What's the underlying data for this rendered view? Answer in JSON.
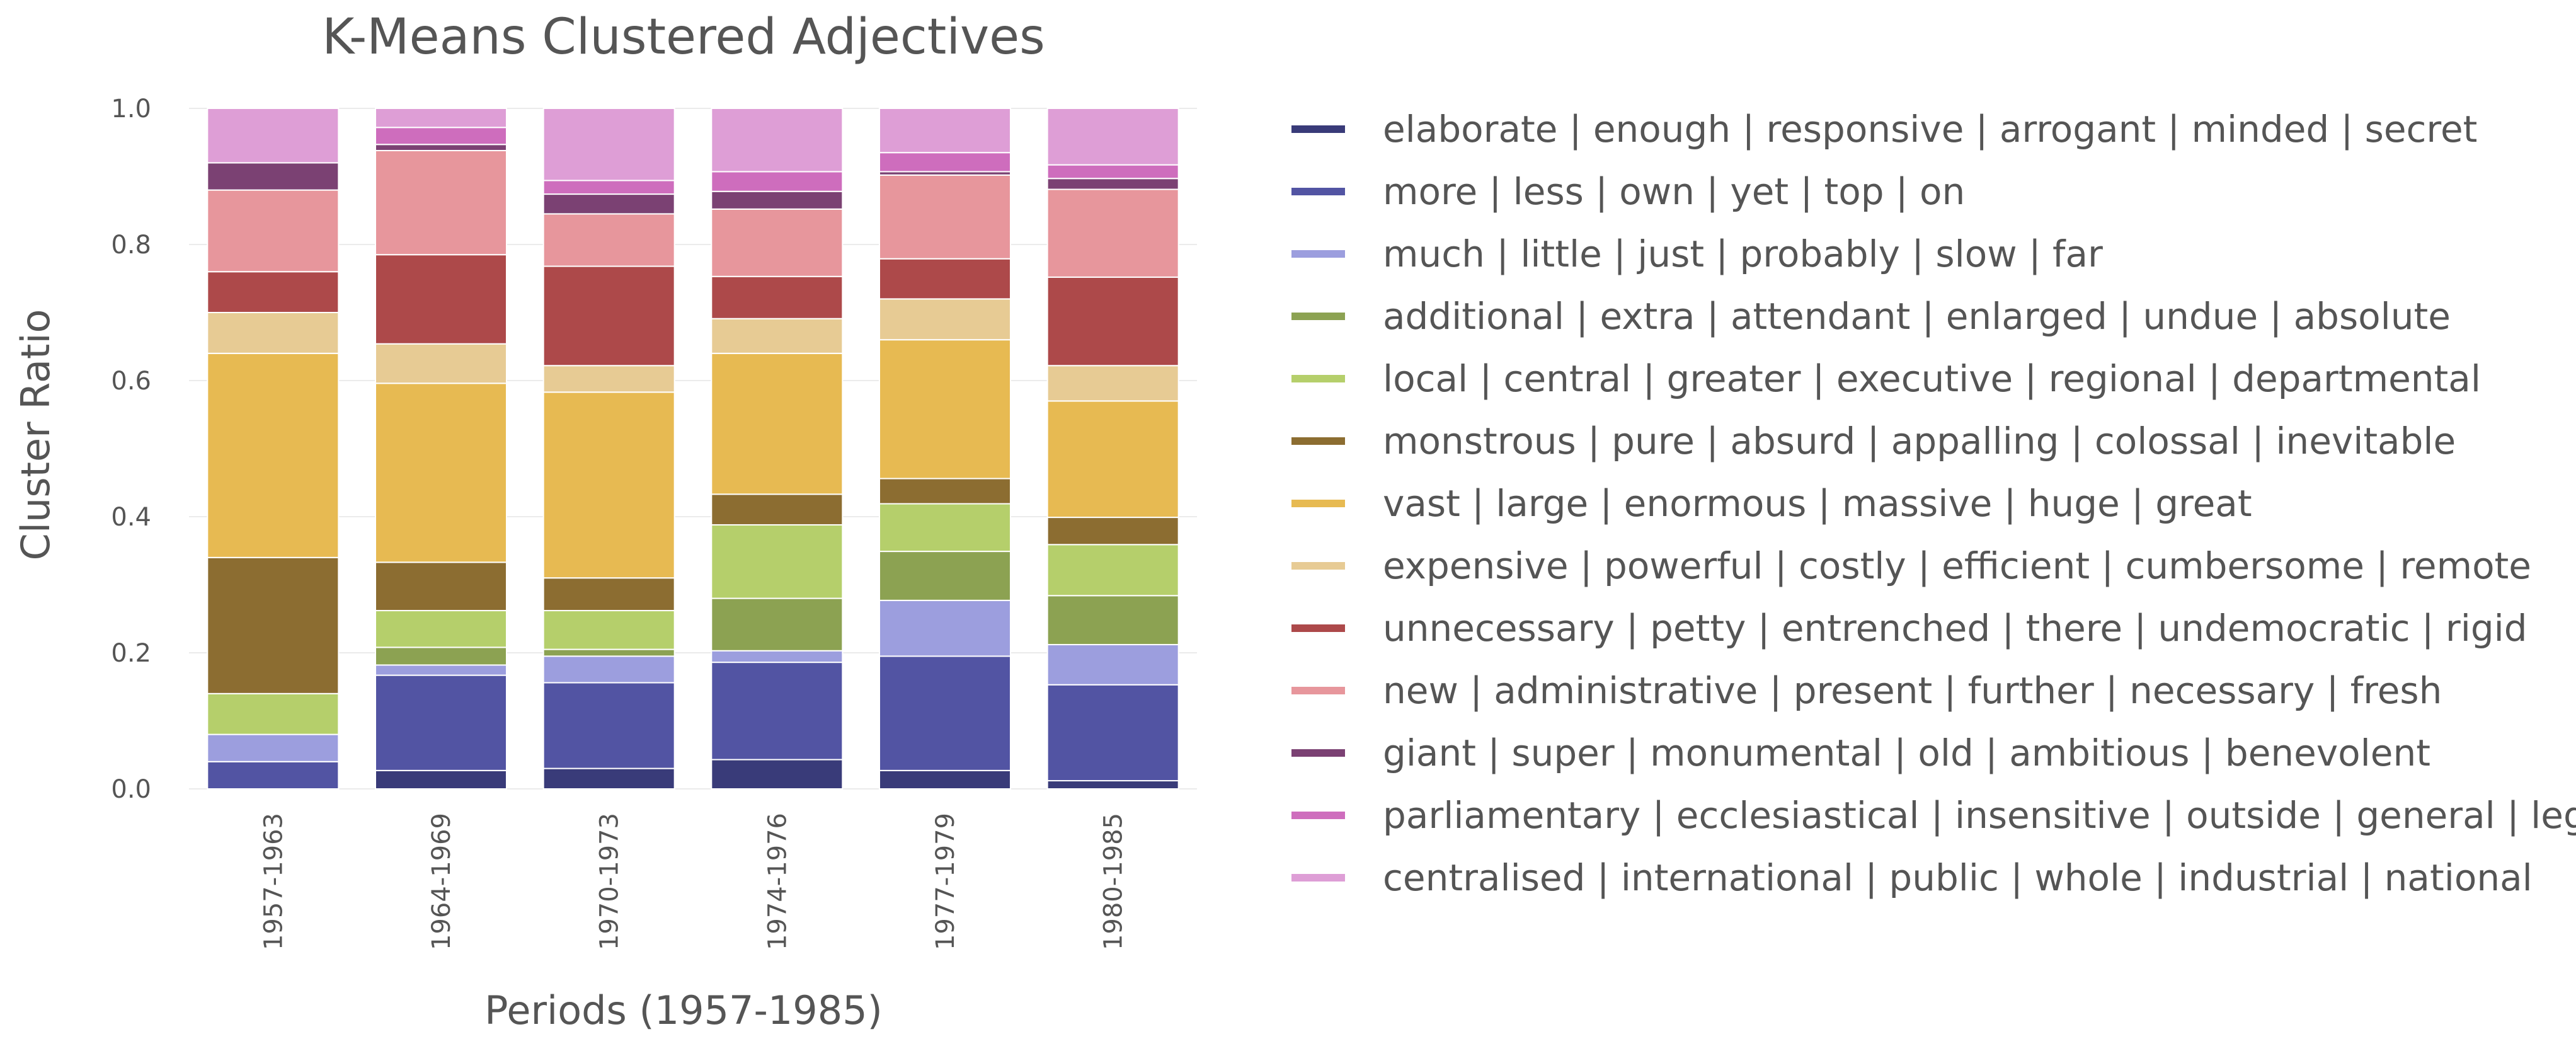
{
  "chart_data": {
    "type": "bar",
    "stacked": true,
    "title": "K-Means Clustered Adjectives",
    "xlabel": "Periods (1957-1985)",
    "ylabel": "Cluster Ratio",
    "ylim": [
      0,
      1
    ],
    "yticks": [
      "0.0",
      "0.2",
      "0.4",
      "0.6",
      "0.8",
      "1.0"
    ],
    "grid": true,
    "legend_position": "right",
    "categories": [
      "1957-1963",
      "1964-1969",
      "1970-1973",
      "1974-1976",
      "1977-1979",
      "1980-1985"
    ],
    "series": [
      {
        "name": "elaborate | enough | responsive | arrogant | minded | secret",
        "color": "#393b79",
        "values": [
          0.0,
          0.027,
          0.03,
          0.043,
          0.027,
          0.012
        ]
      },
      {
        "name": "more | less | own | yet | top | on",
        "color": "#5254a3",
        "values": [
          0.04,
          0.14,
          0.126,
          0.143,
          0.168,
          0.141
        ]
      },
      {
        "name": "much | little | just | probably | slow | far",
        "color": "#9c9ede",
        "values": [
          0.04,
          0.015,
          0.039,
          0.017,
          0.082,
          0.059
        ]
      },
      {
        "name": "additional | extra | attendant | enlarged | undue | absolute",
        "color": "#8ca252",
        "values": [
          0.0,
          0.026,
          0.01,
          0.077,
          0.072,
          0.072
        ]
      },
      {
        "name": "local | central | greater | executive | regional | departmental",
        "color": "#b5cf6b",
        "values": [
          0.06,
          0.054,
          0.057,
          0.108,
          0.07,
          0.075
        ]
      },
      {
        "name": "monstrous | pure | absurd | appalling | colossal | inevitable",
        "color": "#8c6d31",
        "values": [
          0.2,
          0.071,
          0.048,
          0.045,
          0.037,
          0.04
        ]
      },
      {
        "name": "vast | large | enormous | massive | huge | great",
        "color": "#e7ba52",
        "values": [
          0.3,
          0.263,
          0.273,
          0.207,
          0.204,
          0.171
        ]
      },
      {
        "name": "expensive | powerful | costly | efficient | cumbersome | remote",
        "color": "#e7cb94",
        "values": [
          0.06,
          0.058,
          0.039,
          0.051,
          0.06,
          0.052
        ]
      },
      {
        "name": "unnecessary | petty | entrenched | there | undemocratic | rigid",
        "color": "#ad494a",
        "values": [
          0.06,
          0.131,
          0.146,
          0.062,
          0.059,
          0.13
        ]
      },
      {
        "name": "new | administrative | present | further | necessary | fresh",
        "color": "#e7969c",
        "values": [
          0.12,
          0.153,
          0.077,
          0.099,
          0.123,
          0.129
        ]
      },
      {
        "name": "giant | super | monumental | old | ambitious | benevolent",
        "color": "#7b4173",
        "values": [
          0.04,
          0.009,
          0.029,
          0.026,
          0.005,
          0.016
        ]
      },
      {
        "name": "parliamentary | ecclesiastical | insensitive | outside | general | legal",
        "color": "#ce6dbd",
        "values": [
          0.0,
          0.025,
          0.02,
          0.029,
          0.028,
          0.02
        ]
      },
      {
        "name": "centralised | international | public | whole | industrial | national",
        "color": "#de9ed6",
        "values": [
          0.08,
          0.028,
          0.106,
          0.093,
          0.065,
          0.083
        ]
      }
    ]
  }
}
